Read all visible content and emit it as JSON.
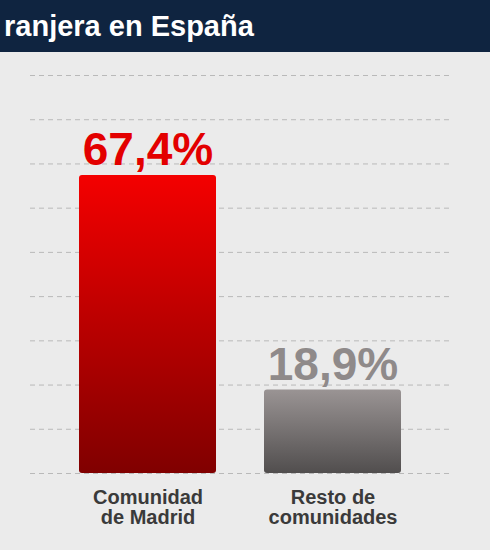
{
  "chart_data": {
    "type": "bar",
    "title": "ranjera en España",
    "categories": [
      "Comunidad de Madrid",
      "Resto de comunidades"
    ],
    "values": [
      67.4,
      18.9
    ],
    "value_labels": [
      "67,4%",
      "18,9%"
    ],
    "colors": [
      "#e30000",
      "#8f8a8a"
    ],
    "ylim": [
      0,
      90
    ],
    "yticks": [
      0,
      10,
      20,
      30,
      40,
      50,
      60,
      70,
      80,
      90
    ],
    "grid": true,
    "data_labels": true,
    "tick_labels": "x"
  }
}
